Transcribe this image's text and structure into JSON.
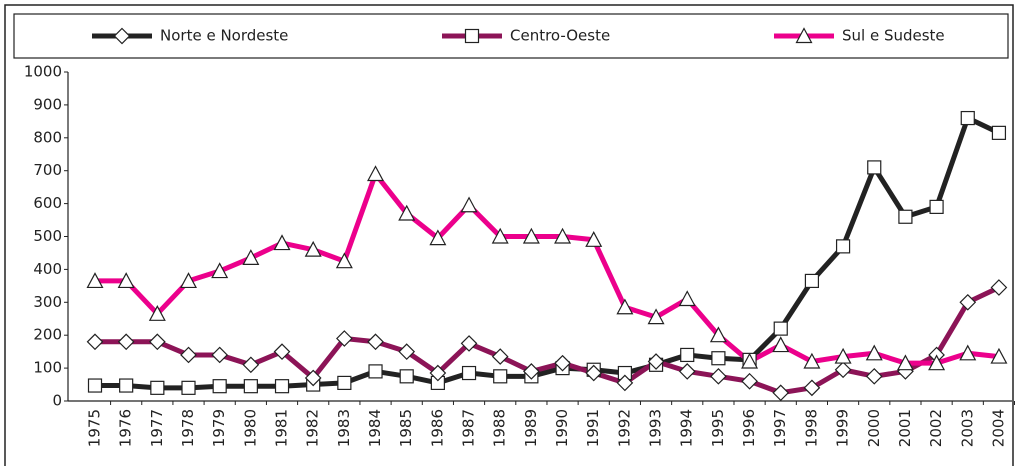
{
  "chart_data": {
    "type": "line",
    "categories": [
      "1975",
      "1976",
      "1977",
      "1978",
      "1979",
      "1980",
      "1981",
      "1982",
      "1983",
      "1984",
      "1985",
      "1986",
      "1987",
      "1988",
      "1989",
      "1990",
      "1991",
      "1992",
      "1993",
      "1994",
      "1995",
      "1996",
      "1997",
      "1998",
      "1999",
      "2000",
      "2001",
      "2002",
      "2003",
      "2004"
    ],
    "series": [
      {
        "name": "Norte e Nordeste",
        "color": "#222222",
        "marker": "square",
        "legend_marker": "diamond",
        "values": [
          47,
          47,
          40,
          40,
          45,
          45,
          45,
          50,
          55,
          90,
          75,
          55,
          85,
          75,
          75,
          100,
          95,
          85,
          110,
          140,
          130,
          125,
          220,
          365,
          470,
          710,
          560,
          590,
          860,
          815
        ]
      },
      {
        "name": "Centro-Oeste",
        "color": "#8c1457",
        "marker": "diamond",
        "legend_marker": "square",
        "values": [
          180,
          180,
          180,
          140,
          140,
          110,
          150,
          70,
          190,
          180,
          150,
          85,
          175,
          135,
          90,
          115,
          85,
          55,
          120,
          90,
          75,
          60,
          25,
          40,
          95,
          75,
          90,
          140,
          300,
          345
        ]
      },
      {
        "name": "Sul e Sudeste",
        "color": "#ec008c",
        "marker": "triangle",
        "legend_marker": "triangle",
        "values": [
          365,
          365,
          265,
          365,
          395,
          435,
          480,
          460,
          425,
          690,
          570,
          495,
          595,
          500,
          500,
          500,
          490,
          285,
          255,
          310,
          200,
          120,
          170,
          120,
          135,
          145,
          115,
          115,
          145,
          135
        ]
      }
    ],
    "ylim": [
      0,
      1000
    ],
    "yticks": [
      0,
      100,
      200,
      300,
      400,
      500,
      600,
      700,
      800,
      900,
      1000
    ],
    "grid": false
  }
}
